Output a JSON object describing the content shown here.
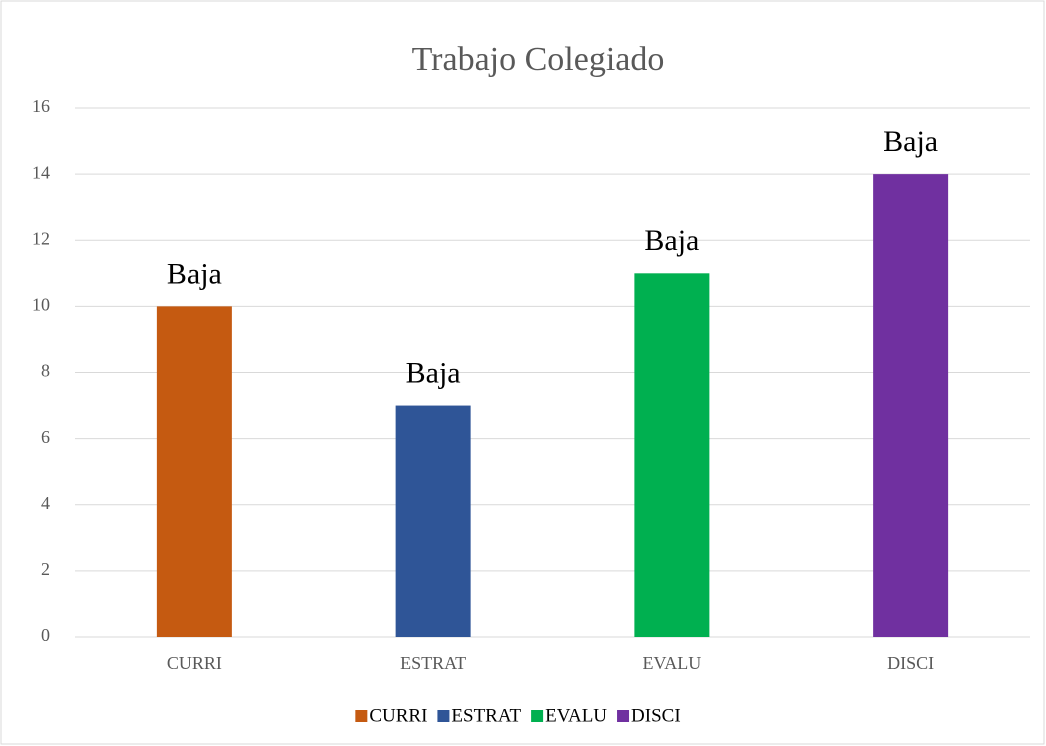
{
  "chart_data": {
    "type": "bar",
    "title": "Trabajo Colegiado",
    "categories": [
      "CURRI",
      "ESTRAT",
      "EVALU",
      "DISCI"
    ],
    "values": [
      10,
      7,
      11,
      14
    ],
    "data_labels": [
      "Baja",
      "Baja",
      "Baja",
      "Baja"
    ],
    "colors": [
      "#c55a11",
      "#2f5597",
      "#00b050",
      "#7030a0"
    ],
    "ylim": [
      0,
      16
    ],
    "yticks": [
      0,
      2,
      4,
      6,
      8,
      10,
      12,
      14,
      16
    ],
    "grid": true,
    "legend": "bottom"
  }
}
